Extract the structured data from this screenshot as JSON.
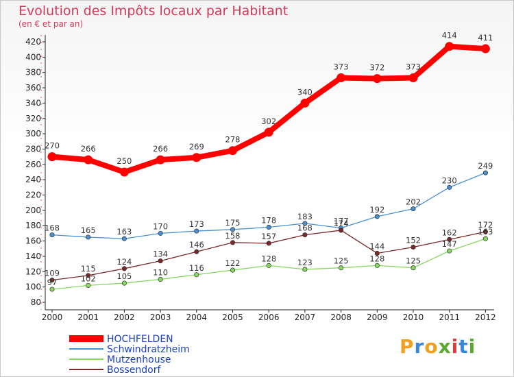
{
  "header": {
    "title": "Evolution des Impôts locaux par Habitant",
    "subtitle": "(en € et par an)"
  },
  "brand": {
    "letters": [
      "P",
      "r",
      "o",
      "x",
      "i",
      "t",
      "i"
    ],
    "colors": [
      "#f0a020",
      "#3a86d9",
      "#f0a020",
      "#5aa830",
      "#e03a3a",
      "#3a86d9",
      "#5aa830"
    ]
  },
  "chart_data": {
    "type": "line",
    "title": "Evolution des Impôts locaux par Habitant",
    "subtitle": "(en € et par an)",
    "xlabel": "",
    "ylabel": "",
    "ylim": [
      80,
      420
    ],
    "ytick_step": 20,
    "grid": false,
    "legend_position": "bottom-left",
    "x": [
      "2000",
      "2001",
      "2002",
      "2003",
      "2004",
      "2005",
      "2006",
      "2007",
      "2008",
      "2009",
      "2010",
      "2011",
      "2012"
    ],
    "series": [
      {
        "name": "HOCHFELDEN",
        "color": "#ff0000",
        "thick": true,
        "values": [
          270,
          266,
          250,
          266,
          269,
          278,
          302,
          340,
          373,
          372,
          373,
          414,
          411
        ]
      },
      {
        "name": "Schwindratzheim",
        "color": "#4a90d0",
        "thick": false,
        "values": [
          168,
          165,
          163,
          170,
          173,
          175,
          178,
          183,
          177,
          192,
          202,
          230,
          249
        ]
      },
      {
        "name": "Mutzenhouse",
        "color": "#88d860",
        "thick": false,
        "values": [
          97,
          102,
          105,
          110,
          116,
          122,
          128,
          123,
          125,
          128,
          125,
          147,
          163
        ]
      },
      {
        "name": "Bossendorf",
        "color": "#7a2a2a",
        "thick": false,
        "values": [
          109,
          115,
          124,
          134,
          146,
          158,
          157,
          168,
          174,
          144,
          152,
          162,
          172
        ]
      }
    ]
  }
}
